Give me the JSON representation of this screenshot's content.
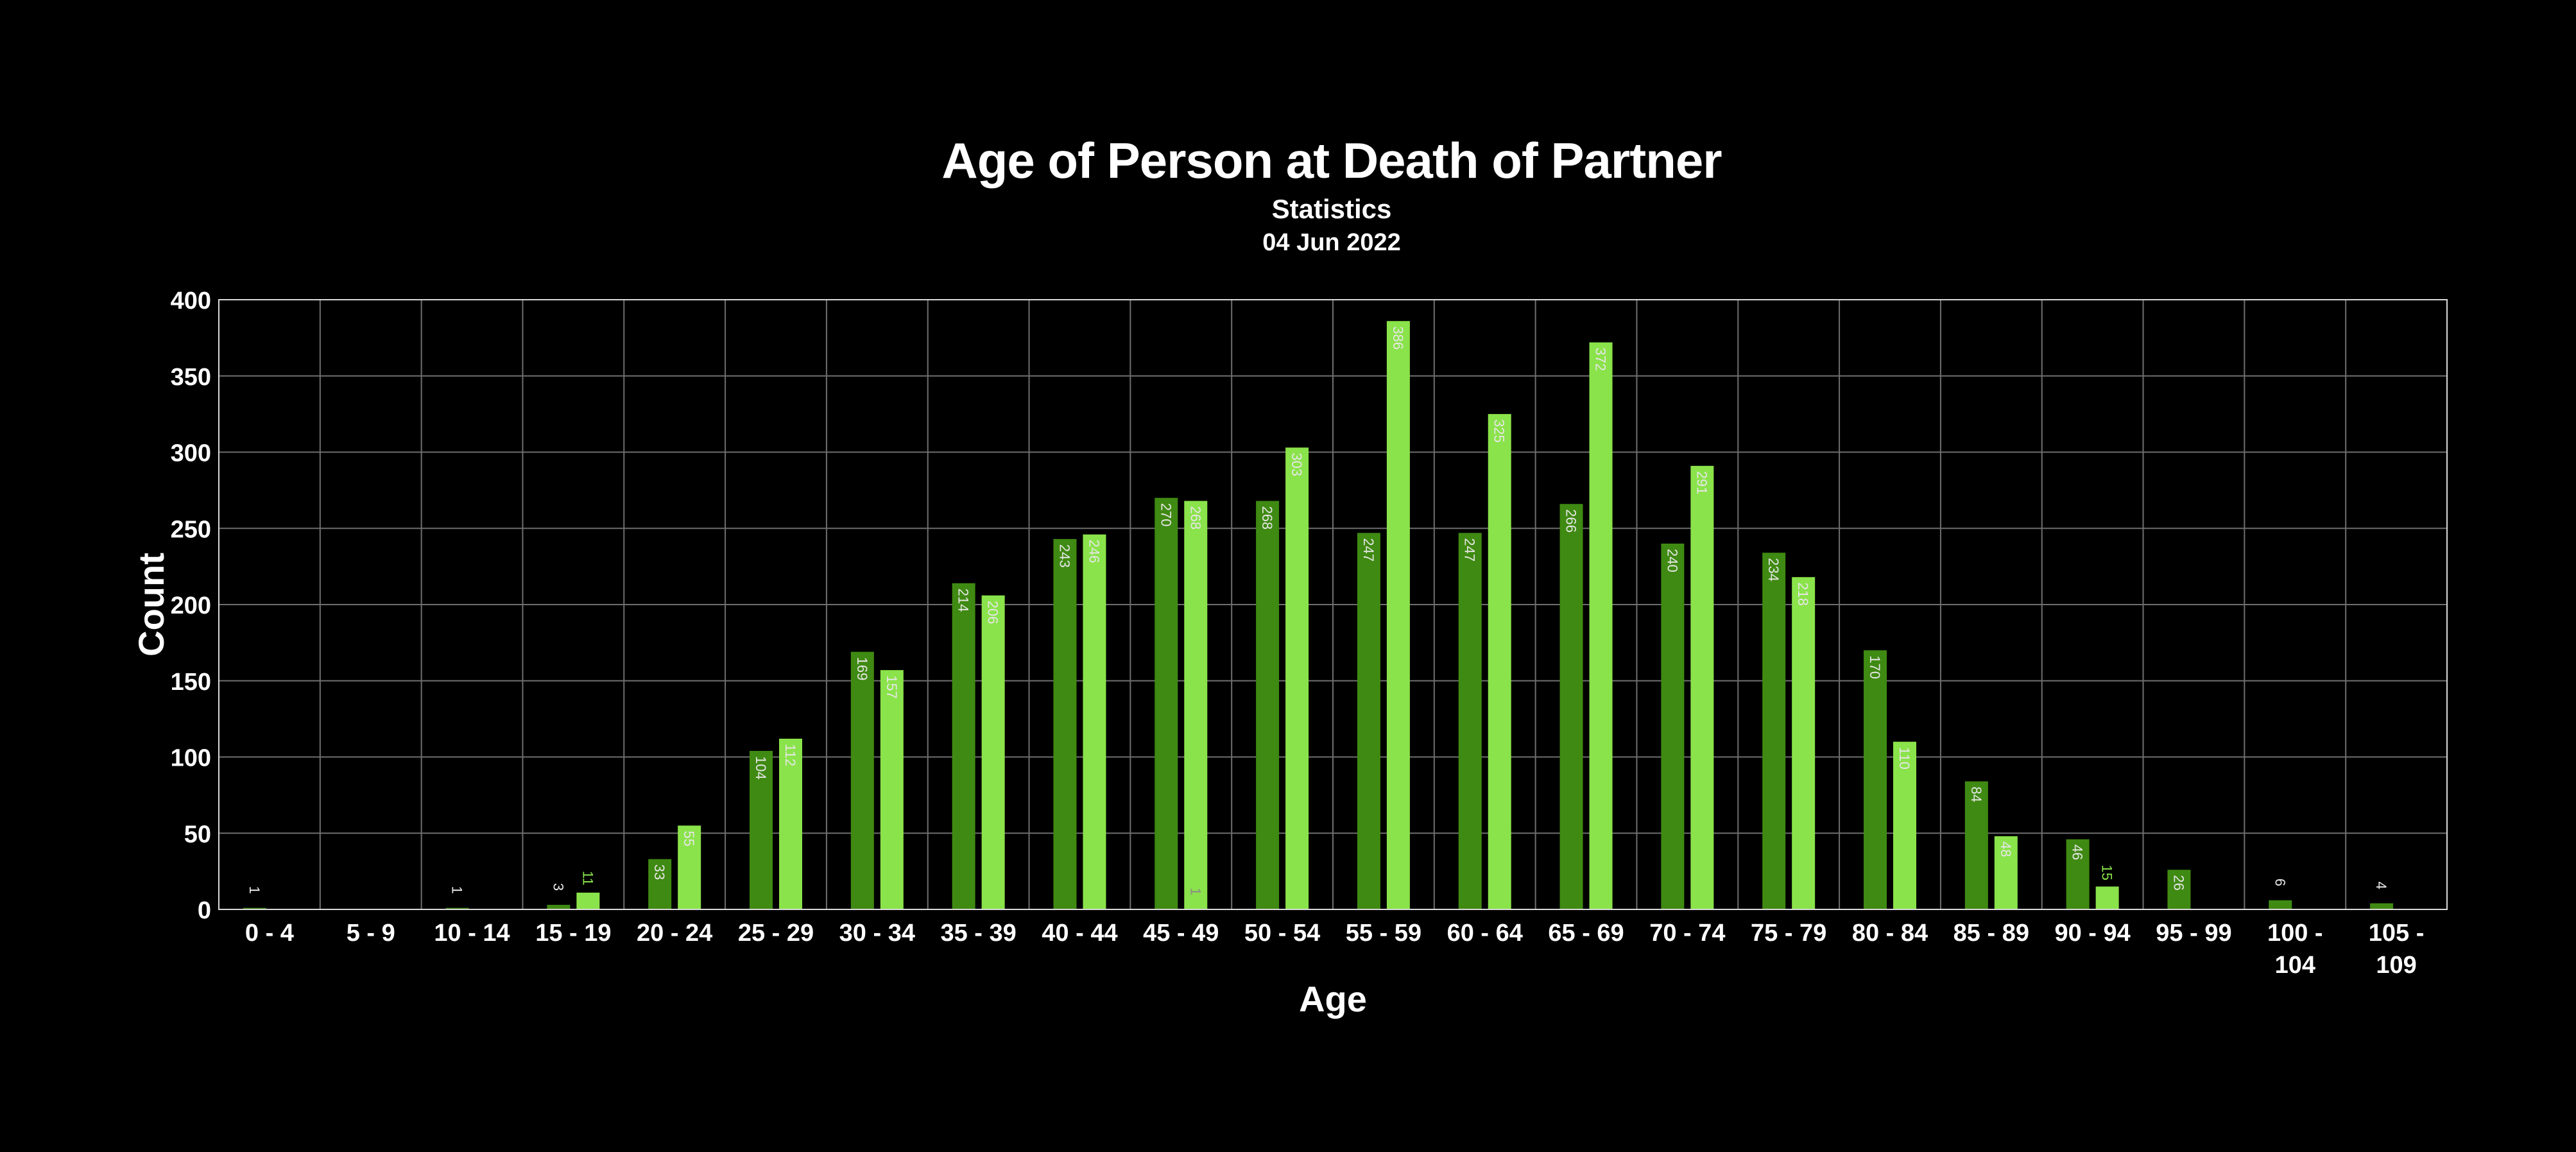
{
  "chart_data": {
    "type": "bar",
    "title": "Age of Person at Death of Partner",
    "subtitle": "Statistics",
    "date": "04 Jun 2022",
    "xlabel": "Age",
    "ylabel": "Count",
    "ylim": [
      0,
      400
    ],
    "yticks": [
      0,
      50,
      100,
      150,
      200,
      250,
      300,
      350,
      400
    ],
    "grid": true,
    "legend": "none",
    "colors": [
      "#3f8a12",
      "#8ae34a"
    ],
    "categories": [
      "0 - 4",
      "5 - 9",
      "10 - 14",
      "15 - 19",
      "20 - 24",
      "25 - 29",
      "30 - 34",
      "35 - 39",
      "40 - 44",
      "45 - 49",
      "50 - 54",
      "55 - 59",
      "60 - 64",
      "65 - 69",
      "70 - 74",
      "75 - 79",
      "80 - 84",
      "85 - 89",
      "90 - 94",
      "95 - 99",
      "100 - 104",
      "105 - 109"
    ],
    "series": [
      {
        "values": [
          1,
          0,
          1,
          3,
          33,
          104,
          169,
          214,
          243,
          270,
          268,
          247,
          247,
          266,
          240,
          234,
          170,
          84,
          46,
          26,
          6,
          4
        ]
      },
      {
        "values": [
          0,
          0,
          0,
          11,
          55,
          112,
          157,
          206,
          246,
          268,
          303,
          386,
          325,
          372,
          291,
          218,
          110,
          48,
          15,
          0,
          0,
          0
        ]
      }
    ],
    "extra_labels": [
      {
        "series": 1,
        "category": "45 - 49",
        "text": "1"
      }
    ]
  }
}
